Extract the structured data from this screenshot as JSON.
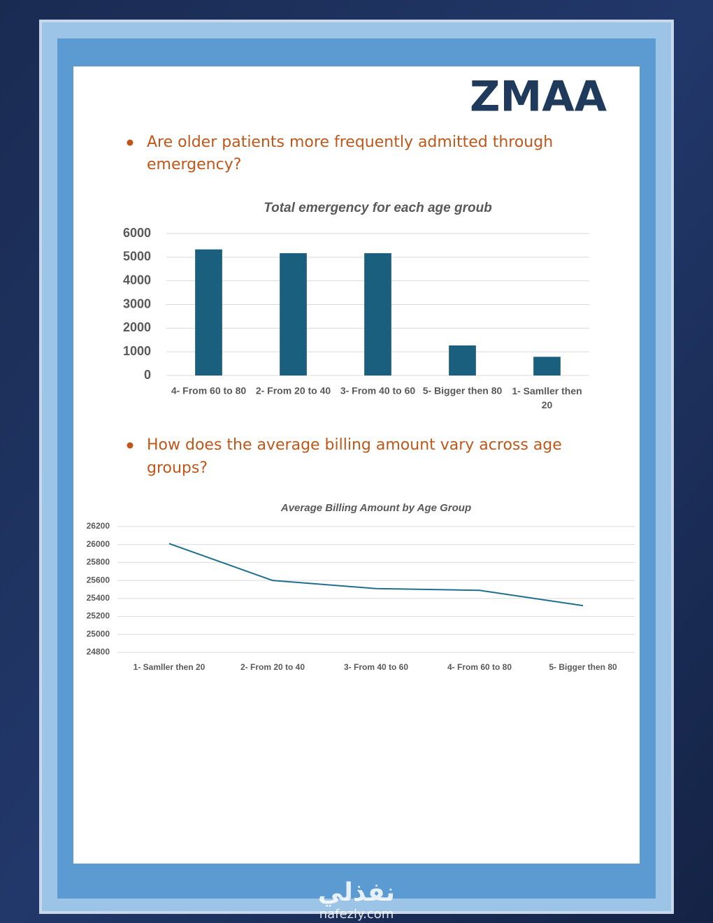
{
  "logo": "ZMAA",
  "questions": [
    "Are older patients more frequently admitted through emergency?",
    "How does the average billing amount vary across age groups?"
  ],
  "chart_data": [
    {
      "type": "bar",
      "title": "Total emergency for each age groub",
      "categories": [
        "4- From 60 to 80",
        "2- From 20 to 40",
        "3- From 40 to 60",
        "5- Bigger then 80",
        "1- Samller then 20"
      ],
      "values": [
        5330,
        5170,
        5170,
        1270,
        790
      ],
      "color": "#1b5f7e",
      "ylim": [
        0,
        6000
      ],
      "yticks": [
        0,
        1000,
        2000,
        3000,
        4000,
        5000,
        6000
      ],
      "grid": true
    },
    {
      "type": "line",
      "title": "Average Billing Amount by Age Group",
      "categories": [
        "1- Samller then 20",
        "2- From 20 to 40",
        "3- From 40 to 60",
        "4- From 60 to 80",
        "5- Bigger then 80"
      ],
      "values": [
        26010,
        25600,
        25510,
        25490,
        25320
      ],
      "color": "#1f6f8e",
      "ylim": [
        24800,
        26200
      ],
      "yticks": [
        24800,
        25000,
        25200,
        25400,
        25600,
        25800,
        26000,
        26200
      ],
      "grid": true
    }
  ],
  "watermark": {
    "arabic": "نفذلي",
    "latin": "nafezly.com"
  }
}
